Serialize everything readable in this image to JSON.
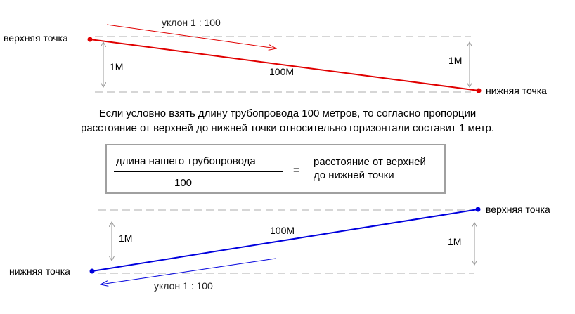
{
  "top_diagram": {
    "upper_point_label": "верхняя точка",
    "lower_point_label": "нижняя точка",
    "slope_label": "уклон 1 : 100",
    "length_label": "100М",
    "left_height_label": "1М",
    "right_height_label": "1М",
    "line_color": "#e00000"
  },
  "explanation": {
    "line1": "Если условно взять длину трубопровода 100 метров, то согласно пропорции",
    "line2": "расстояние от верхней до нижней точки относительно горизонтали составит 1 метр."
  },
  "formula": {
    "numerator": "длина нашего трубопровода",
    "denominator": "100",
    "equals": "=",
    "result_line1": "расстояние от верхней",
    "result_line2": "до нижней точки"
  },
  "bottom_diagram": {
    "upper_point_label": "верхняя точка",
    "lower_point_label": "нижняя точка",
    "slope_label": "уклон 1 : 100",
    "length_label": "100М",
    "left_height_label": "1М",
    "right_height_label": "1М",
    "line_color": "#0000dd"
  },
  "colors": {
    "dashed_guides": "#bdbdbd",
    "dimension_arrows": "#9a9a9a",
    "formula_border": "#a0a0a0"
  }
}
